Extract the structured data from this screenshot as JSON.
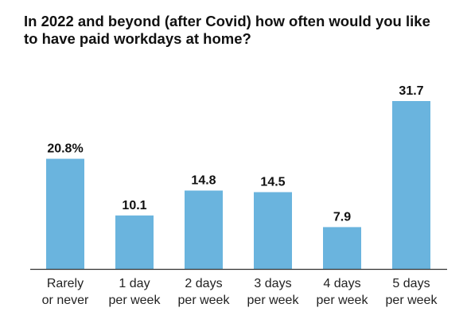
{
  "chart_data": {
    "type": "bar",
    "title": "In 2022 and beyond (after Covid) how often would you like to have paid workdays at home?",
    "categories": [
      [
        "Rarely",
        "or never"
      ],
      [
        "1 day",
        "per week"
      ],
      [
        "2 days",
        "per week"
      ],
      [
        "3 days",
        "per week"
      ],
      [
        "4 days",
        "per week"
      ],
      [
        "5 days",
        "per week"
      ]
    ],
    "values": [
      20.8,
      10.1,
      14.8,
      14.5,
      7.9,
      31.7
    ],
    "data_labels": [
      "20.8%",
      "10.1",
      "14.8",
      "14.5",
      "7.9",
      "31.7"
    ],
    "xlabel": "",
    "ylabel": "",
    "ylim": [
      0,
      31.7
    ],
    "grid": false,
    "legend": "none",
    "bar_color": "#6ab4de",
    "axis_color": "#333333"
  }
}
